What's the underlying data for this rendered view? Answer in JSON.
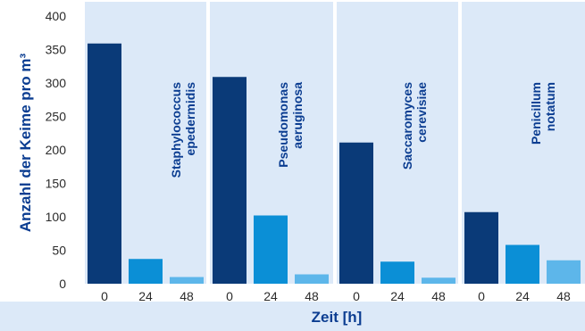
{
  "chart_data": {
    "type": "bar",
    "ylabel": "Anzahl der Keime pro m³",
    "xlabel": "Zeit [h]",
    "ylim": [
      0,
      400
    ],
    "yticks": [
      0,
      50,
      100,
      150,
      200,
      250,
      300,
      350,
      400
    ],
    "categories": [
      "0",
      "24",
      "48"
    ],
    "bar_colors": [
      "#0a3a78",
      "#0b8fd6",
      "#5db6ea"
    ],
    "panel_background": "#dce9f8",
    "footer_background": "#dce9f8",
    "grid": false,
    "panels": [
      {
        "label_lines": [
          "Staphylococcus",
          "epedermidis"
        ],
        "values": [
          359,
          37,
          10
        ]
      },
      {
        "label_lines": [
          "Pseudomonas",
          "aeruginosa"
        ],
        "values": [
          309,
          102,
          14
        ]
      },
      {
        "label_lines": [
          "Saccaromyces",
          "cerevisiae"
        ],
        "values": [
          211,
          33,
          9
        ]
      },
      {
        "label_lines": [
          "Penicillum",
          "notatum"
        ],
        "values": [
          107,
          58,
          35
        ]
      }
    ]
  }
}
